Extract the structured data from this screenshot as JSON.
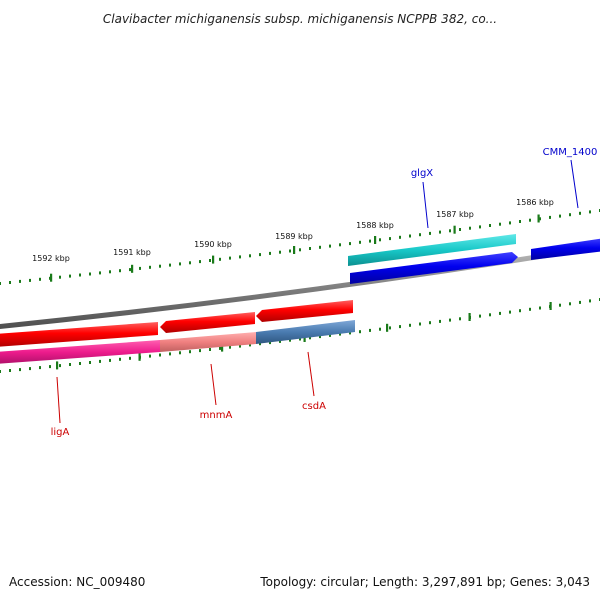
{
  "title": "Clavibacter michiganensis subsp. michiganensis NCPPB 382, co...",
  "footer": {
    "accession": "Accession: NC_009480",
    "topology": "Topology: circular; Length: 3,297,891 bp; Genes: 3,043"
  },
  "ticks": [
    "1592 kbp",
    "1591 kbp",
    "1590 kbp",
    "1589 kbp",
    "1588 kbp",
    "1587 kbp",
    "1586 kbp"
  ],
  "genes": {
    "ligA": "ligA",
    "mnmA": "mnmA",
    "csdA": "csdA",
    "glgX": "glgX",
    "cmm1400": "CMM_1400"
  },
  "colors": {
    "backbone": "#808080",
    "cds_red": "#ee0000",
    "cds_blue": "#0000ee",
    "cds_cyan": "#10c8c8",
    "pink": "#ee1c8c",
    "salmon": "#f08080",
    "steel_blue": "#4a7bb0",
    "tick": "#1a7a1a",
    "label_red": "#cc0000",
    "label_blue": "#0000cc"
  }
}
